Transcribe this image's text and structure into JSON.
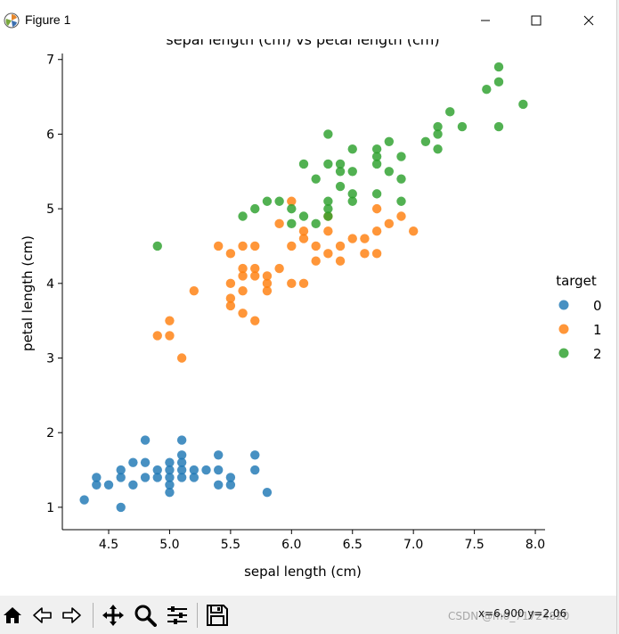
{
  "window": {
    "title": "Figure 1",
    "minimize_label": "minimize",
    "maximize_label": "maximize",
    "close_label": "close"
  },
  "toolbar": {
    "coordinates": "x=6.900 y=2.06",
    "watermark": "CSDN @m0_71724820",
    "buttons": [
      "home-icon",
      "back-icon",
      "forward-icon",
      "pan-icon",
      "zoom-icon",
      "configure-icon",
      "save-icon"
    ]
  },
  "colors": {
    "0": "#1f77b4",
    "1": "#ff7f0e",
    "2": "#2ca02c"
  },
  "chart_data": {
    "type": "scatter",
    "title": "sepal length (cm) vs petal length (cm)",
    "xlabel": "sepal length (cm)",
    "ylabel": "petal length (cm)",
    "xlim": [
      4.12,
      8.08
    ],
    "ylim": [
      0.7,
      7.2
    ],
    "xticks": [
      4.5,
      5.0,
      5.5,
      6.0,
      6.5,
      7.0,
      7.5,
      8.0
    ],
    "yticks": [
      1,
      2,
      3,
      4,
      5,
      6,
      7
    ],
    "xtick_labels": [
      "4.5",
      "5.0",
      "5.5",
      "6.0",
      "6.5",
      "7.0",
      "7.5",
      "8.0"
    ],
    "ytick_labels": [
      "1",
      "2",
      "3",
      "4",
      "5",
      "6",
      "7"
    ],
    "legend_title": "target",
    "legend_position": "right",
    "series": [
      {
        "name": "0",
        "points": [
          [
            4.3,
            1.1
          ],
          [
            4.4,
            1.3
          ],
          [
            4.4,
            1.4
          ],
          [
            4.5,
            1.3
          ],
          [
            4.6,
            1.0
          ],
          [
            4.6,
            1.4
          ],
          [
            4.6,
            1.5
          ],
          [
            4.7,
            1.3
          ],
          [
            4.7,
            1.6
          ],
          [
            4.8,
            1.4
          ],
          [
            4.8,
            1.6
          ],
          [
            4.8,
            1.9
          ],
          [
            4.9,
            1.4
          ],
          [
            4.9,
            1.5
          ],
          [
            5.0,
            1.2
          ],
          [
            5.0,
            1.3
          ],
          [
            5.0,
            1.4
          ],
          [
            5.0,
            1.5
          ],
          [
            5.0,
            1.6
          ],
          [
            5.1,
            1.4
          ],
          [
            5.1,
            1.5
          ],
          [
            5.1,
            1.6
          ],
          [
            5.1,
            1.7
          ],
          [
            5.1,
            1.9
          ],
          [
            5.2,
            1.4
          ],
          [
            5.2,
            1.5
          ],
          [
            5.3,
            1.5
          ],
          [
            5.4,
            1.3
          ],
          [
            5.4,
            1.5
          ],
          [
            5.4,
            1.7
          ],
          [
            5.5,
            1.3
          ],
          [
            5.5,
            1.4
          ],
          [
            5.7,
            1.5
          ],
          [
            5.7,
            1.7
          ],
          [
            5.8,
            1.2
          ]
        ]
      },
      {
        "name": "1",
        "points": [
          [
            4.9,
            3.3
          ],
          [
            5.0,
            3.3
          ],
          [
            5.0,
            3.5
          ],
          [
            5.1,
            3.0
          ],
          [
            5.2,
            3.9
          ],
          [
            5.4,
            4.5
          ],
          [
            5.5,
            3.7
          ],
          [
            5.5,
            3.8
          ],
          [
            5.5,
            4.0
          ],
          [
            5.5,
            4.4
          ],
          [
            5.6,
            3.6
          ],
          [
            5.6,
            3.9
          ],
          [
            5.6,
            4.1
          ],
          [
            5.6,
            4.2
          ],
          [
            5.6,
            4.5
          ],
          [
            5.7,
            3.5
          ],
          [
            5.7,
            4.1
          ],
          [
            5.7,
            4.2
          ],
          [
            5.7,
            4.5
          ],
          [
            5.8,
            3.9
          ],
          [
            5.8,
            4.0
          ],
          [
            5.8,
            4.1
          ],
          [
            5.9,
            4.2
          ],
          [
            5.9,
            4.8
          ],
          [
            6.0,
            4.0
          ],
          [
            6.0,
            4.5
          ],
          [
            6.0,
            5.1
          ],
          [
            6.1,
            4.0
          ],
          [
            6.1,
            4.6
          ],
          [
            6.1,
            4.7
          ],
          [
            6.2,
            4.3
          ],
          [
            6.2,
            4.5
          ],
          [
            6.3,
            4.4
          ],
          [
            6.3,
            4.7
          ],
          [
            6.3,
            4.9
          ],
          [
            6.4,
            4.3
          ],
          [
            6.4,
            4.5
          ],
          [
            6.5,
            4.6
          ],
          [
            6.6,
            4.4
          ],
          [
            6.6,
            4.6
          ],
          [
            6.7,
            4.4
          ],
          [
            6.7,
            4.7
          ],
          [
            6.7,
            5.0
          ],
          [
            6.8,
            4.8
          ],
          [
            6.9,
            4.9
          ],
          [
            7.0,
            4.7
          ]
        ]
      },
      {
        "name": "2",
        "points": [
          [
            4.9,
            4.5
          ],
          [
            5.6,
            4.9
          ],
          [
            5.7,
            5.0
          ],
          [
            5.8,
            5.1
          ],
          [
            5.9,
            5.1
          ],
          [
            6.0,
            4.8
          ],
          [
            6.0,
            5.0
          ],
          [
            6.1,
            4.9
          ],
          [
            6.1,
            5.6
          ],
          [
            6.2,
            4.8
          ],
          [
            6.2,
            5.4
          ],
          [
            6.3,
            4.9
          ],
          [
            6.3,
            5.0
          ],
          [
            6.3,
            5.1
          ],
          [
            6.3,
            5.6
          ],
          [
            6.3,
            6.0
          ],
          [
            6.4,
            5.3
          ],
          [
            6.4,
            5.5
          ],
          [
            6.4,
            5.6
          ],
          [
            6.5,
            5.1
          ],
          [
            6.5,
            5.2
          ],
          [
            6.5,
            5.5
          ],
          [
            6.5,
            5.8
          ],
          [
            6.7,
            5.2
          ],
          [
            6.7,
            5.6
          ],
          [
            6.7,
            5.7
          ],
          [
            6.7,
            5.8
          ],
          [
            6.8,
            5.5
          ],
          [
            6.8,
            5.9
          ],
          [
            6.9,
            5.1
          ],
          [
            6.9,
            5.4
          ],
          [
            6.9,
            5.7
          ],
          [
            7.1,
            5.9
          ],
          [
            7.2,
            5.8
          ],
          [
            7.2,
            6.0
          ],
          [
            7.2,
            6.1
          ],
          [
            7.3,
            6.3
          ],
          [
            7.4,
            6.1
          ],
          [
            7.6,
            6.6
          ],
          [
            7.7,
            6.1
          ],
          [
            7.7,
            6.7
          ],
          [
            7.7,
            6.9
          ],
          [
            7.9,
            6.4
          ]
        ]
      }
    ]
  }
}
